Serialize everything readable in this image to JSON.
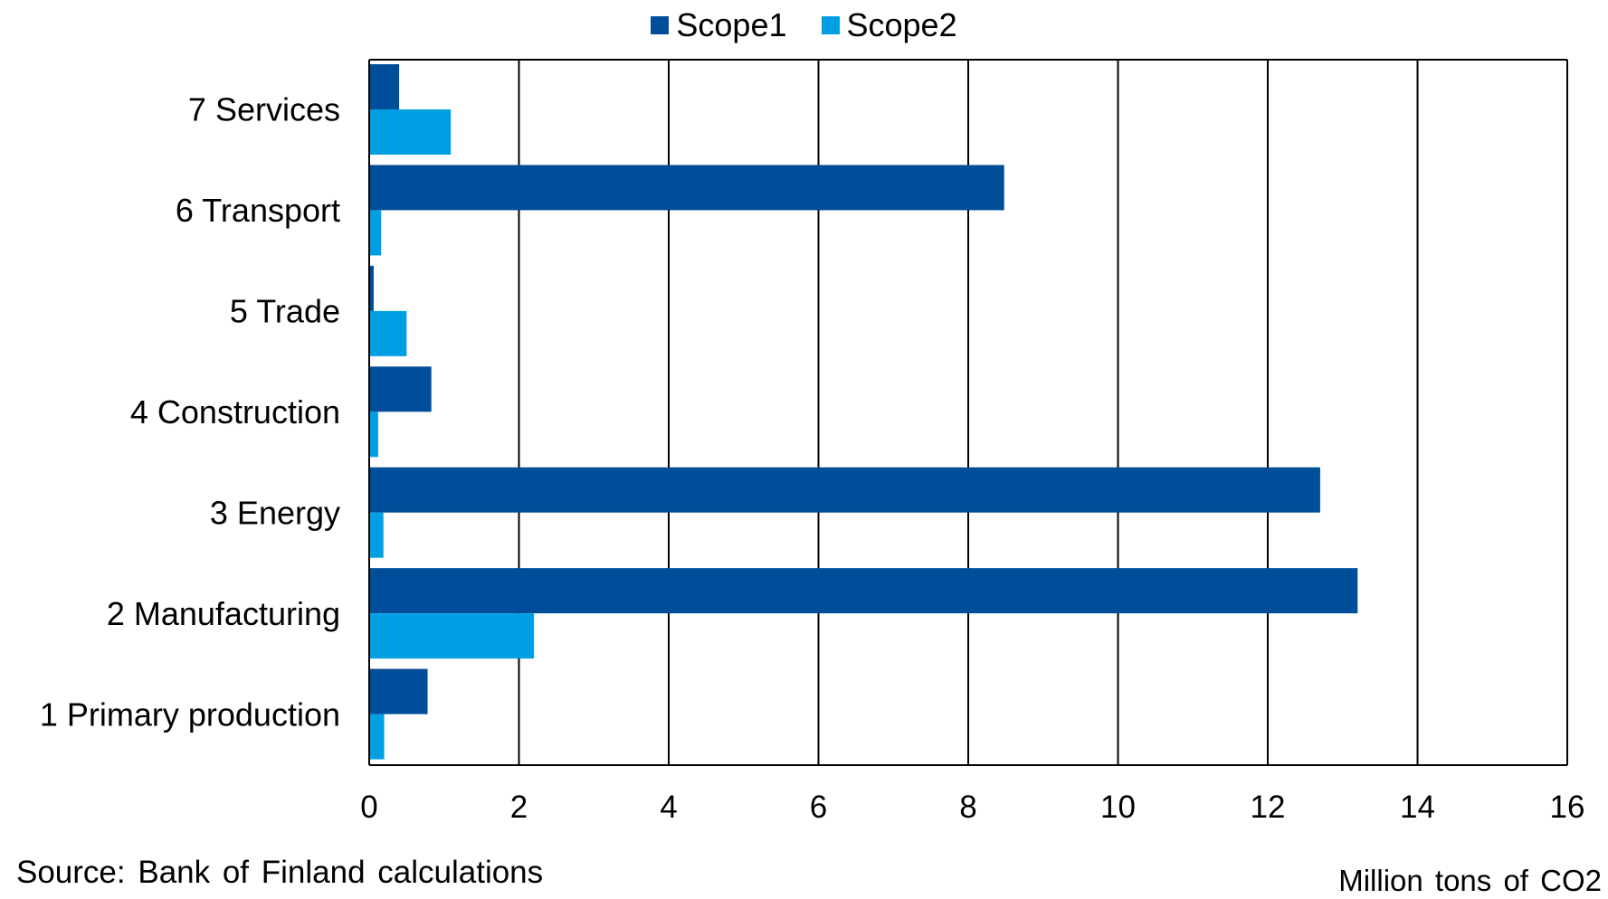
{
  "chart_data": {
    "type": "bar",
    "orientation": "horizontal",
    "categories": [
      "1 Primary production",
      "2 Manufacturing",
      "3 Energy",
      "4 Construction",
      "5 Trade",
      "6 Transport",
      "7 Services"
    ],
    "series": [
      {
        "name": "Scope1",
        "color": "#004d99",
        "values": [
          0.78,
          13.2,
          12.7,
          0.83,
          0.06,
          8.48,
          0.4
        ]
      },
      {
        "name": "Scope2",
        "color": "#009fe3",
        "values": [
          0.2,
          2.2,
          0.19,
          0.12,
          0.5,
          0.16,
          1.09
        ]
      }
    ],
    "xlim": [
      0,
      16
    ],
    "x_ticks": [
      0,
      2,
      4,
      6,
      8,
      10,
      12,
      14,
      16
    ],
    "x_tick_labels": [
      "0",
      "2",
      "4",
      "6",
      "8",
      "10",
      "12",
      "14",
      "16"
    ],
    "grid": "vertical",
    "legend_position": "top-center",
    "source": "Source: Bank of Finland calculations",
    "unit": "Million tons of CO2"
  }
}
